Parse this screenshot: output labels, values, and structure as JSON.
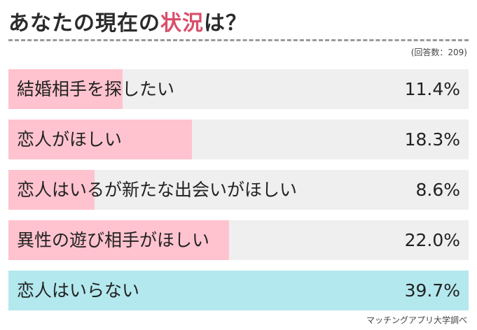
{
  "title": {
    "prefix": "あなたの現在の",
    "accent": "状況",
    "suffix": "は？"
  },
  "note": "(回答数：209)",
  "source": "マッチングアプリ大学調べ",
  "colors": {
    "pink_fill": "#ffc3cf",
    "cyan_fill": "#b3e8ee",
    "track": "#efefef",
    "title_accent": "#d94f6b"
  },
  "chart_data": {
    "type": "bar",
    "orientation": "horizontal",
    "categories": [
      "結婚相手を探したい",
      "恋人がほしい",
      "恋人はいるが新たな出会いがほしい",
      "異性の遊び相手がほしい",
      "恋人はいらない"
    ],
    "values": [
      11.4,
      18.3,
      8.6,
      22.0,
      39.7
    ],
    "value_labels": [
      "11.4%",
      "18.3%",
      "8.6%",
      "22.0%",
      "39.7%"
    ],
    "highlight_index": 4,
    "xlim": [
      0,
      100
    ],
    "unit": "%"
  }
}
